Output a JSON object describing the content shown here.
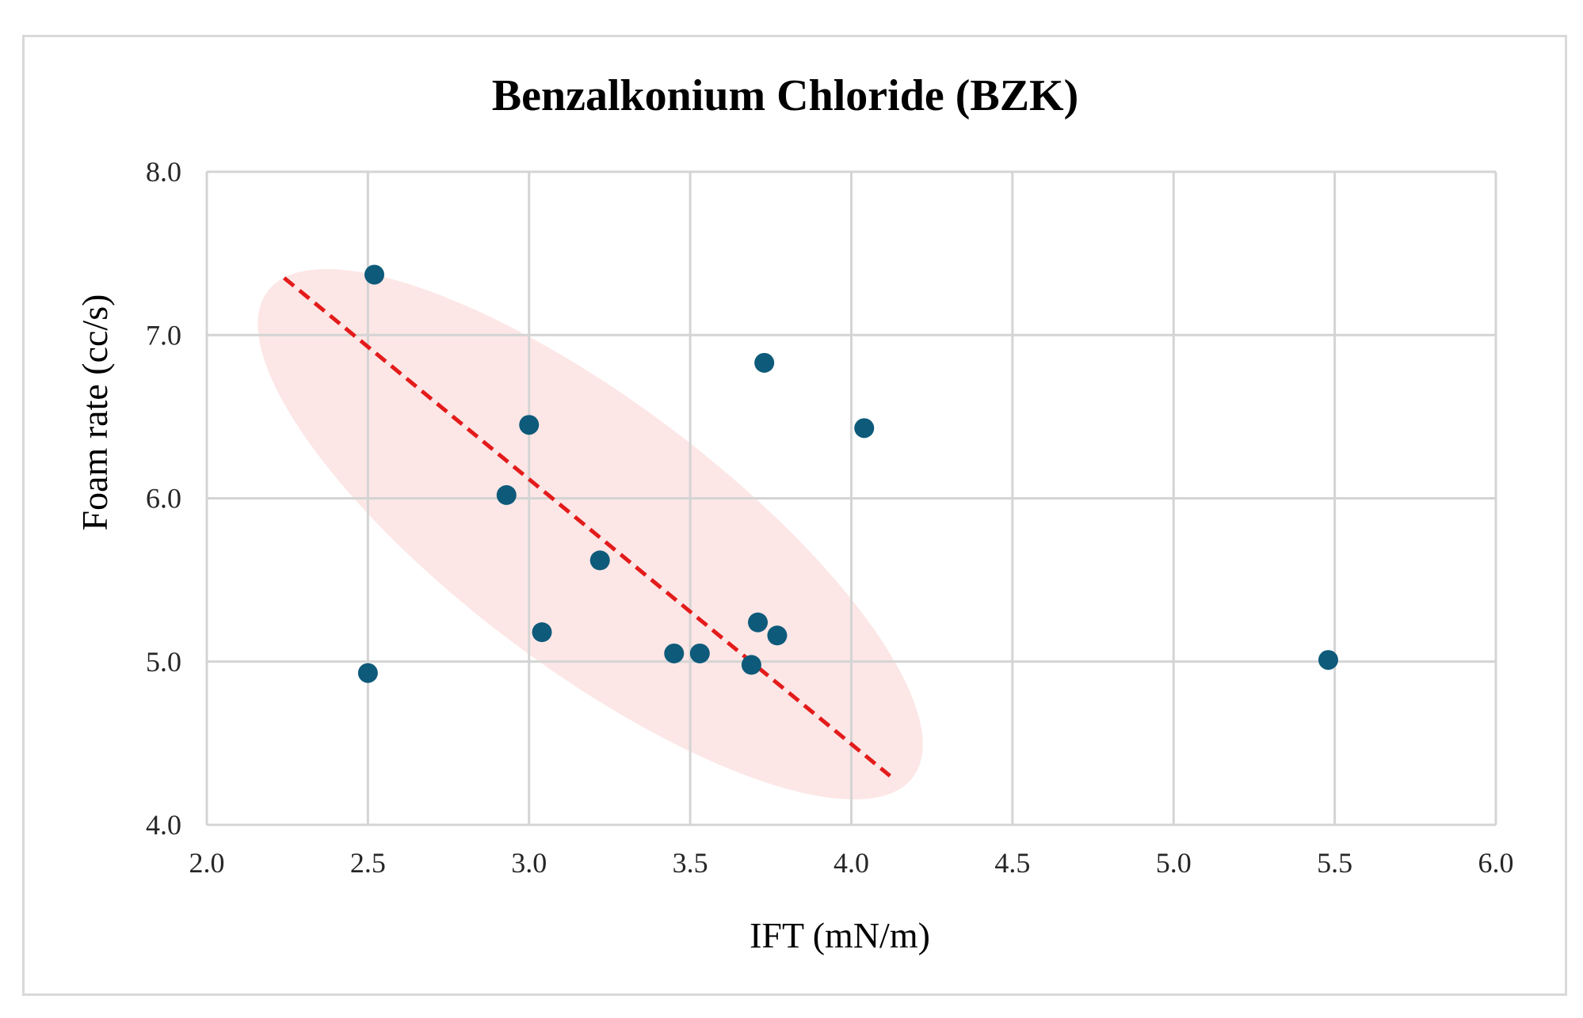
{
  "chart_data": {
    "type": "scatter",
    "title": "Benzalkonium Chloride (BZK)",
    "xlabel": "IFT (mN/m)",
    "ylabel": "Foam rate (cc/s)",
    "xlim": [
      2.0,
      6.0
    ],
    "ylim": [
      4.0,
      8.0
    ],
    "xticks": [
      2.0,
      2.5,
      3.0,
      3.5,
      4.0,
      4.5,
      5.0,
      5.5,
      6.0
    ],
    "yticks": [
      4.0,
      5.0,
      6.0,
      7.0,
      8.0
    ],
    "xtick_labels": [
      "2.0",
      "2.5",
      "3.0",
      "3.5",
      "4.0",
      "4.5",
      "5.0",
      "5.5",
      "6.0"
    ],
    "ytick_labels": [
      "4.0",
      "5.0",
      "6.0",
      "7.0",
      "8.0"
    ],
    "grid": true,
    "series": [
      {
        "name": "BZK",
        "color": "#0e5a7a",
        "points": [
          {
            "x": 2.52,
            "y": 7.37
          },
          {
            "x": 2.5,
            "y": 4.93
          },
          {
            "x": 2.93,
            "y": 6.02
          },
          {
            "x": 3.0,
            "y": 6.45
          },
          {
            "x": 3.04,
            "y": 5.18
          },
          {
            "x": 3.22,
            "y": 5.62
          },
          {
            "x": 3.45,
            "y": 5.05
          },
          {
            "x": 3.53,
            "y": 5.05
          },
          {
            "x": 3.69,
            "y": 4.98
          },
          {
            "x": 3.71,
            "y": 5.24
          },
          {
            "x": 3.73,
            "y": 6.83
          },
          {
            "x": 3.77,
            "y": 5.16
          },
          {
            "x": 4.04,
            "y": 6.43
          },
          {
            "x": 5.48,
            "y": 5.01
          }
        ]
      }
    ],
    "trendline": {
      "style": "dashed",
      "color": "#e31b1b",
      "from": {
        "x": 2.24,
        "y": 7.35
      },
      "to": {
        "x": 4.12,
        "y": 4.3
      }
    },
    "highlight_ellipse": {
      "color": "#fde3e3",
      "center": {
        "x": 3.19,
        "y": 5.78
      },
      "description": "shaded region around trend"
    }
  }
}
